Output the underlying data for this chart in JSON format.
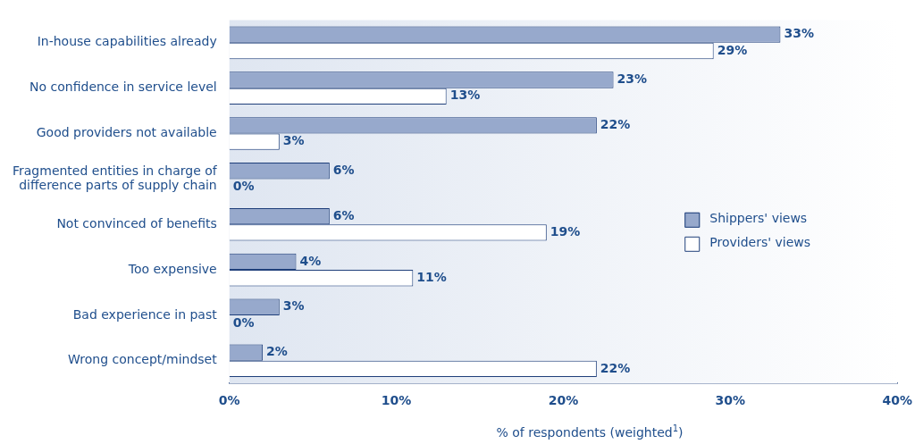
{
  "chart_data": {
    "type": "bar",
    "orientation": "horizontal",
    "xlabel": "% of respondents (weighted$^{1}$)",
    "categories": [
      "In-house capabilities already",
      "No confidence in service level",
      "Good providers not available",
      "Fragmented entities in charge of difference parts of supply chain",
      "Not convinced of benefits",
      "Too expensive",
      "Bad experience in past",
      "Wrong concept/mindset"
    ],
    "series": [
      {
        "name": "Shippers' views",
        "color": "#97a9cc",
        "values": [
          33,
          23,
          22,
          6,
          6,
          4,
          3,
          2
        ],
        "value_labels": [
          "33%",
          "23%",
          "22%",
          "6%",
          "6%",
          "4%",
          "3%",
          "2%"
        ]
      },
      {
        "name": "Providers' views",
        "color": "#ffffff",
        "values": [
          29,
          13,
          3,
          0,
          19,
          11,
          0,
          22
        ],
        "value_labels": [
          "29%",
          "13%",
          "3%",
          "0%",
          "19%",
          "11%",
          "0%",
          "22%"
        ]
      }
    ],
    "xlim": [
      0,
      40
    ],
    "xticks": [
      {
        "value": 0,
        "label": "0%"
      },
      {
        "value": 10,
        "label": "10%"
      },
      {
        "value": 20,
        "label": "20%"
      },
      {
        "value": 30,
        "label": "30%"
      },
      {
        "value": 40,
        "label": "40%"
      }
    ],
    "grid": false,
    "legend": "right"
  }
}
